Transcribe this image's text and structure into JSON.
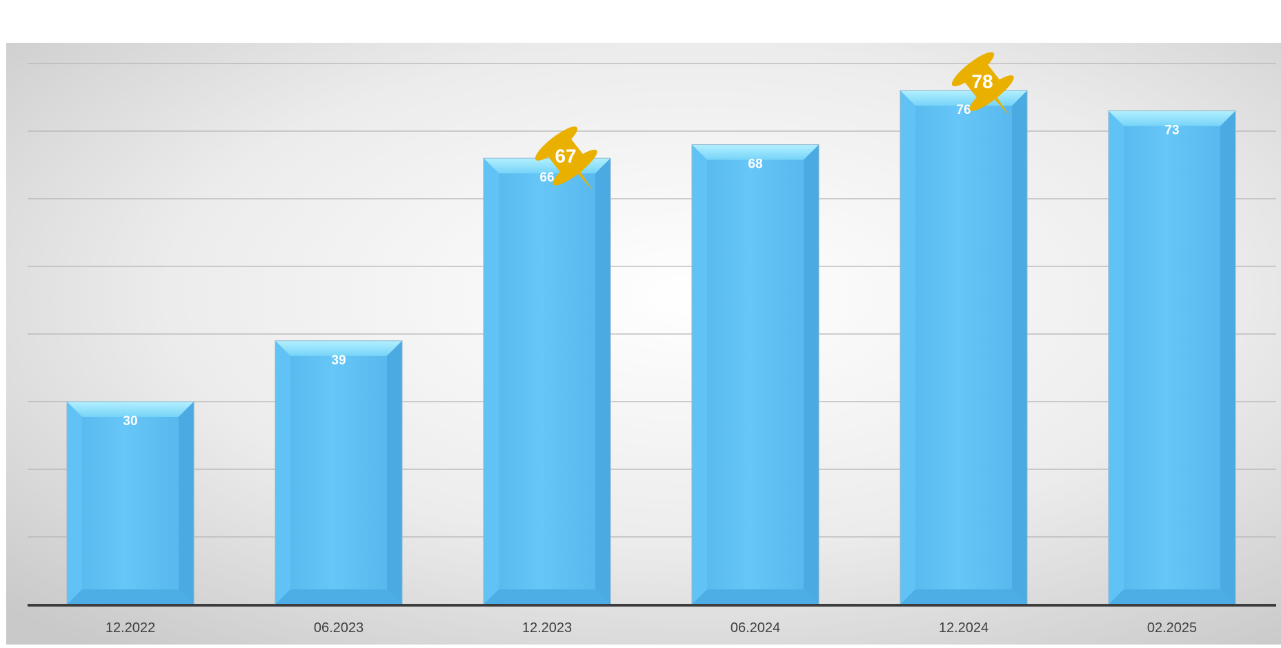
{
  "chart_data": {
    "type": "bar",
    "categories": [
      "12.2022",
      "06.2023",
      "12.2023",
      "06.2024",
      "12.2024",
      "02.2025"
    ],
    "values": [
      30,
      39,
      66,
      68,
      76,
      73
    ],
    "ylim": [
      0,
      80
    ],
    "grid": true,
    "legend": "none",
    "annotations": [
      {
        "category": "12.2023",
        "value": 67
      },
      {
        "category": "12.2024",
        "value": 78
      }
    ],
    "colors": {
      "bar": "#5bbcf2",
      "bar_top": "#9be6fb",
      "pin": "#eab000",
      "label": "#ffffff",
      "axis": "#3d3d3d",
      "gridline": "#b4b4b4"
    }
  }
}
